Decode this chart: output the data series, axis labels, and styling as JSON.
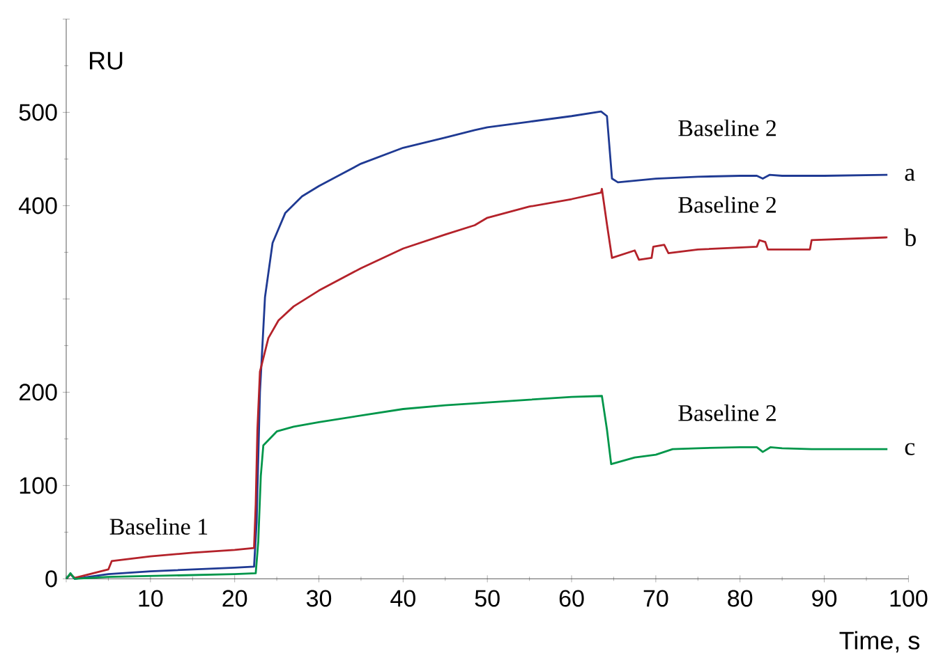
{
  "chart_data": {
    "type": "line",
    "xlabel": "Time, s",
    "ylabel": "RU",
    "xlim": [
      0,
      100
    ],
    "ylim": [
      0,
      600
    ],
    "xticks": [
      {
        "value": 0,
        "label": null
      },
      10,
      20,
      30,
      40,
      50,
      60,
      70,
      80,
      90,
      100
    ],
    "yticks": [
      0,
      100,
      200,
      {
        "value": 300,
        "label": null
      },
      400,
      500,
      {
        "value": 600,
        "label": null
      }
    ],
    "marker": "none",
    "line_style": "solid",
    "series": [
      {
        "name": "a",
        "color": "#1f3a93",
        "x": [
          0,
          0.5,
          1,
          5,
          10,
          15,
          20,
          22.3,
          22.6,
          23,
          23.6,
          24.5,
          26,
          28,
          30,
          35,
          40,
          45,
          48.5,
          50,
          55,
          60,
          63.5,
          64.2,
          64.8,
          65.5,
          70,
          75,
          80,
          82,
          82.7,
          83.5,
          85,
          90,
          97.5
        ],
        "values": [
          0,
          5,
          0,
          5,
          8,
          10,
          12,
          13,
          60,
          200,
          302,
          360,
          392,
          410,
          421,
          445,
          462,
          473,
          481,
          484,
          490,
          496,
          501,
          496,
          429,
          425,
          429,
          431,
          432,
          432,
          429,
          433,
          432,
          432,
          433
        ]
      },
      {
        "name": "b",
        "color": "#b4222a",
        "x": [
          0,
          0.5,
          1,
          5,
          5.4,
          10,
          15,
          20,
          22.3,
          22.5,
          22.7,
          23,
          24,
          25.2,
          27,
          30,
          35,
          40,
          45,
          48.5,
          50,
          55,
          60,
          63.5,
          63.6,
          64.2,
          64.8,
          67.5,
          68,
          69.5,
          69.7,
          71,
          71.5,
          75,
          82,
          82.3,
          83,
          83.3,
          88.3,
          88.5,
          97.5
        ],
        "values": [
          0,
          5,
          1,
          10,
          19,
          24,
          28,
          31,
          33,
          80,
          160,
          222,
          258,
          277,
          292,
          309,
          333,
          354,
          369,
          379,
          387,
          399,
          407,
          414,
          418,
          380,
          344,
          352,
          342,
          344,
          356,
          358,
          349,
          353,
          356,
          363,
          361,
          353,
          353,
          363,
          366
        ]
      },
      {
        "name": "c",
        "color": "#00964a",
        "x": [
          0,
          0.5,
          1,
          5,
          10,
          15,
          20,
          22.5,
          22.8,
          23.1,
          23.4,
          25,
          27,
          30,
          35,
          40,
          45,
          48.5,
          50,
          55,
          60,
          63.6,
          64.2,
          64.7,
          67.5,
          70,
          72,
          75,
          80,
          82,
          82.7,
          83.6,
          85,
          88.5,
          97.5
        ],
        "values": [
          0,
          6,
          0,
          2,
          3,
          4,
          5,
          6,
          40,
          110,
          143,
          158,
          163,
          168,
          175,
          182,
          186,
          188,
          189,
          192,
          195,
          196,
          160,
          123,
          130,
          133,
          139,
          140,
          141,
          141,
          136,
          141,
          140,
          139,
          139
        ]
      }
    ],
    "annotations": [
      "Baseline 1",
      "Baseline 2",
      "Baseline 2",
      "Baseline 2"
    ]
  }
}
